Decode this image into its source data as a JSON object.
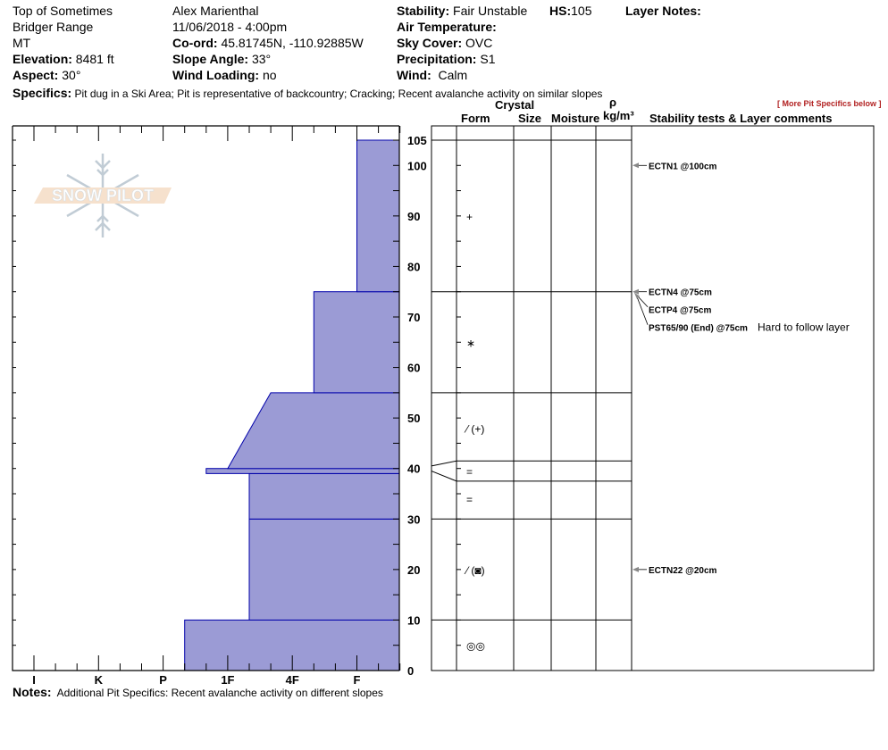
{
  "header": {
    "location": "Top of Sometimes",
    "range": "Bridger Range",
    "state": "MT",
    "elevation_label": "Elevation:",
    "elevation": "8481 ft",
    "aspect_label": "Aspect:",
    "aspect": "30°",
    "observer": "Alex Marienthal",
    "datetime": "11/06/2018 - 4:00pm",
    "coord_label": "Co-ord:",
    "coord": "45.81745N, -110.92885W",
    "slope_label": "Slope Angle:",
    "slope": "33°",
    "wind_loading_label": "Wind Loading:",
    "wind_loading": "no",
    "stability_label": "Stability:",
    "stability": "Fair Unstable",
    "hs_label": "HS:",
    "hs": "105",
    "layer_notes_label": "Layer Notes:",
    "air_temp_label": "Air Temperature:",
    "sky_label": "Sky Cover:",
    "sky": "OVC",
    "precip_label": "Precipitation:",
    "precip": "S1",
    "wind_label": "Wind:",
    "wind": "Calm",
    "specifics_label": "Specifics:",
    "specifics": "Pit dug in a Ski Area; Pit is representative of backcountry;  Cracking;  Recent avalanche activity on similar slopes"
  },
  "table_headers": {
    "crystal": "Crystal",
    "form": "Form",
    "size": "Size",
    "moisture": "Moisture",
    "rho": "ρ",
    "density_unit": "kg/m³",
    "comments": "Stability tests & Layer comments",
    "more_specifics": "[ More Pit Specifics below ]"
  },
  "logo_text": "SNOW PILOT",
  "notes": {
    "label": "Notes:",
    "text": "Additional Pit Specifics: Recent avalanche activity on different slopes"
  },
  "chart_data": {
    "type": "snow-profile",
    "depth_unit": "cm",
    "ylim": [
      0,
      105
    ],
    "depth_tick_labels": [
      "105",
      "100",
      "90",
      "80",
      "70",
      "60",
      "50",
      "40",
      "30",
      "20",
      "10",
      "0"
    ],
    "hardness_tick_labels": [
      "I",
      "K",
      "P",
      "1F",
      "4F",
      "F"
    ],
    "fill_color": "#9b9bd5",
    "edge_color": "#0000aa",
    "hardness_layers": [
      {
        "bottom": 0,
        "top": 10,
        "hardness": "P-"
      },
      {
        "bottom": 10,
        "top": 30,
        "hardness": "1F-"
      },
      {
        "bottom": 30,
        "top": 39,
        "hardness": "1F-"
      },
      {
        "bottom": 39,
        "top": 40,
        "hardness": "1F+"
      },
      {
        "bottom": 40,
        "top": 55,
        "hardness_bottom": "1F",
        "hardness_top": "4F+"
      },
      {
        "bottom": 55,
        "top": 75,
        "hardness": "4F-"
      },
      {
        "bottom": 75,
        "top": 105,
        "hardness": "F"
      }
    ],
    "layer_boundaries": [
      105,
      75,
      55,
      41.5,
      37.5,
      30,
      10
    ],
    "forms": [
      {
        "depth": 90,
        "symbol": "+"
      },
      {
        "depth": 65,
        "symbol": "∗"
      },
      {
        "depth": 48,
        "symbol": "⁄ (+)"
      },
      {
        "depth": 39.5,
        "symbol": "="
      },
      {
        "depth": 34,
        "symbol": "="
      },
      {
        "depth": 20,
        "symbol": "⁄ (◙)"
      },
      {
        "depth": 5,
        "symbol": "◎◎"
      }
    ],
    "tests": [
      {
        "depth": 100,
        "text": "ECTN1 @100cm",
        "comment": ""
      },
      {
        "depth": 75,
        "text": "ECTN4 @75cm",
        "comment": ""
      },
      {
        "depth": 75,
        "text": "ECTP4 @75cm",
        "comment": ""
      },
      {
        "depth": 75,
        "text": "PST65/90 (End) @75cm",
        "comment": "Hard to follow layer"
      },
      {
        "depth": 20,
        "text": "ECTN22 @20cm",
        "comment": ""
      }
    ]
  }
}
